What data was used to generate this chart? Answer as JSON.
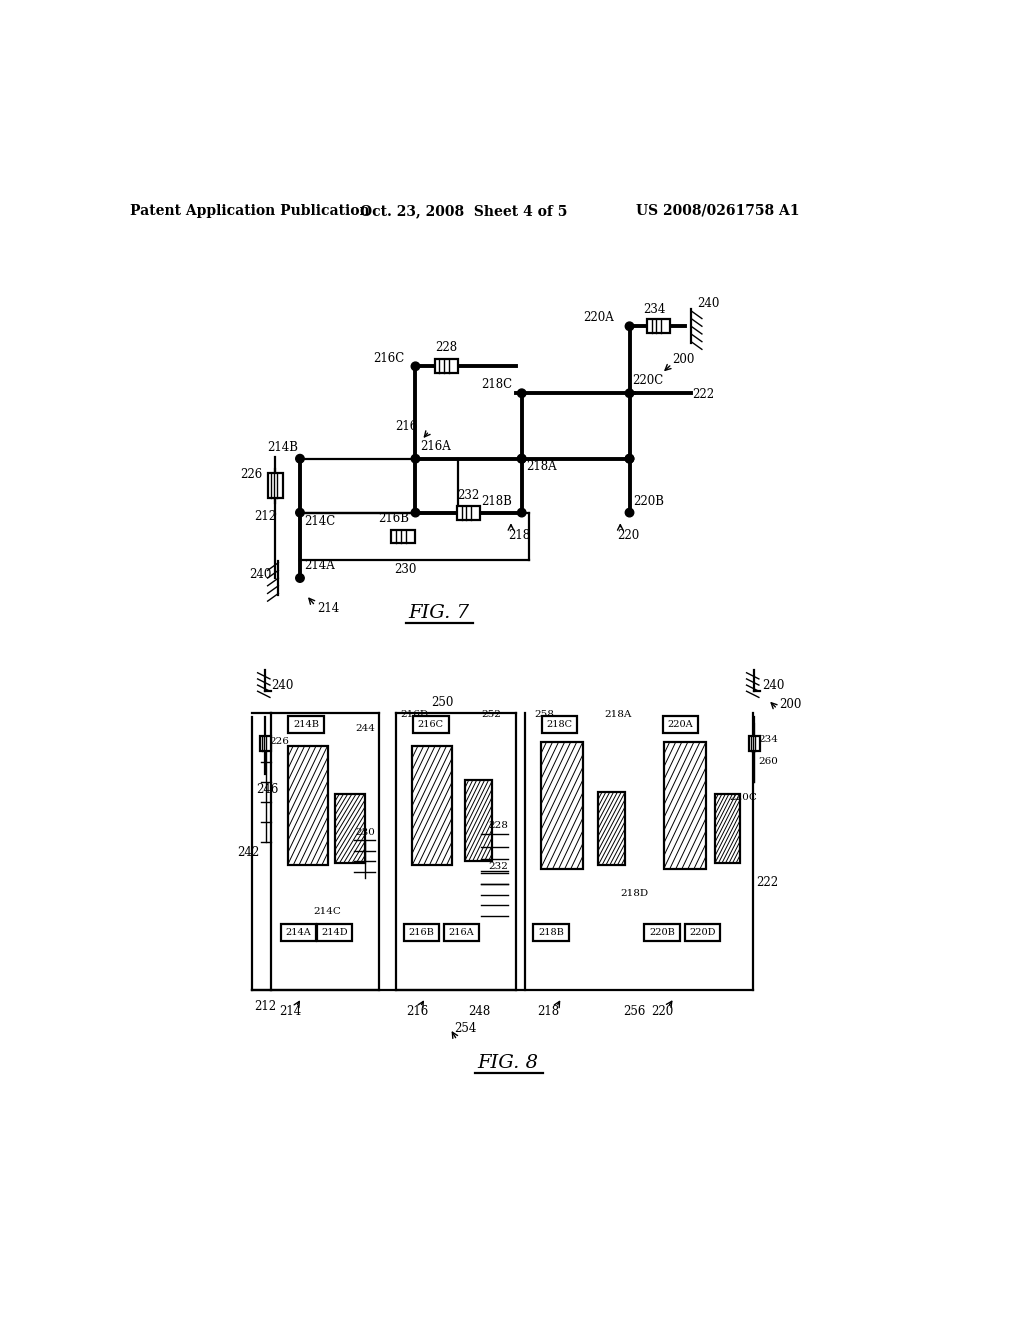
{
  "bg_color": "#ffffff",
  "header_left": "Patent Application Publication",
  "header_mid": "Oct. 23, 2008  Sheet 4 of 5",
  "header_right": "US 2008/0261758 A1",
  "fig7_label": "FIG. 7",
  "fig8_label": "FIG. 8"
}
